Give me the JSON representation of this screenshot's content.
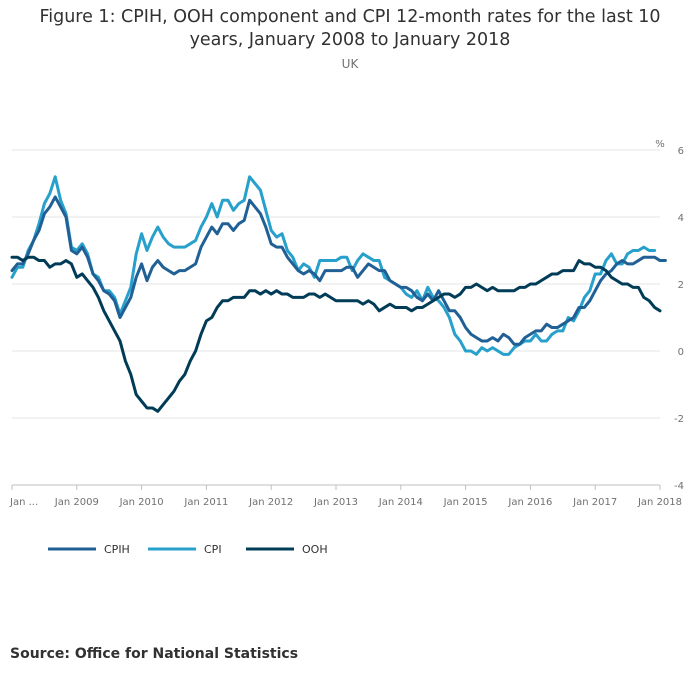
{
  "header": {
    "title_line1": "Figure 1: CPIH, OOH component and CPI 12-month rates for the last 10",
    "title_line2": "years, January 2008 to January 2018",
    "subtitle": "UK"
  },
  "footer": {
    "source": "Source: Office for National Statistics"
  },
  "chart_data": {
    "type": "line",
    "title": "Figure 1: CPIH, OOH component and CPI 12-month rates for the last 10 years, January 2008 to January 2018",
    "subtitle": "UK",
    "ylabel": "%",
    "ylim": [
      -4,
      6
    ],
    "yticks": [
      -4,
      -2,
      0,
      2,
      4,
      6
    ],
    "x_start": "Jan 2008",
    "x_count": 121,
    "x_tick_labels": [
      "Jan ...",
      "Jan 2009",
      "Jan 2010",
      "Jan 2011",
      "Jan 2012",
      "Jan 2013",
      "Jan 2014",
      "Jan 2015",
      "Jan 2016",
      "Jan 2017",
      "Jan 2018"
    ],
    "grid": true,
    "legend_position": "bottom-left",
    "series": [
      {
        "name": "CPIH",
        "color": "#206095",
        "values": [
          2.4,
          2.6,
          2.6,
          2.9,
          3.3,
          3.6,
          4.1,
          4.3,
          4.6,
          4.3,
          4.0,
          3.0,
          2.9,
          3.1,
          2.8,
          2.3,
          2.1,
          1.8,
          1.7,
          1.5,
          1.0,
          1.3,
          1.6,
          2.2,
          2.6,
          2.1,
          2.5,
          2.7,
          2.5,
          2.4,
          2.3,
          2.4,
          2.4,
          2.5,
          2.6,
          3.1,
          3.4,
          3.7,
          3.5,
          3.8,
          3.8,
          3.6,
          3.8,
          3.9,
          4.5,
          4.3,
          4.1,
          3.7,
          3.2,
          3.1,
          3.1,
          2.8,
          2.6,
          2.4,
          2.3,
          2.4,
          2.3,
          2.1,
          2.4,
          2.4,
          2.4,
          2.4,
          2.5,
          2.5,
          2.2,
          2.4,
          2.6,
          2.5,
          2.4,
          2.4,
          2.1,
          2.0,
          1.9,
          1.9,
          1.8,
          1.6,
          1.5,
          1.7,
          1.5,
          1.8,
          1.5,
          1.2,
          1.2,
          1.0,
          0.7,
          0.5,
          0.4,
          0.3,
          0.3,
          0.4,
          0.3,
          0.5,
          0.4,
          0.2,
          0.2,
          0.4,
          0.5,
          0.6,
          0.6,
          0.8,
          0.7,
          0.7,
          0.8,
          0.9,
          1.0,
          1.3,
          1.3,
          1.5,
          1.8,
          2.1,
          2.3,
          2.4,
          2.6,
          2.7,
          2.6,
          2.6,
          2.7,
          2.8,
          2.8,
          2.8,
          2.7,
          2.7
        ]
      },
      {
        "name": "CPI",
        "color": "#27a0cc",
        "values": [
          2.2,
          2.5,
          2.5,
          3.0,
          3.3,
          3.8,
          4.4,
          4.7,
          5.2,
          4.5,
          4.1,
          3.1,
          3.0,
          3.2,
          2.9,
          2.3,
          2.2,
          1.8,
          1.8,
          1.6,
          1.1,
          1.5,
          1.9,
          2.9,
          3.5,
          3.0,
          3.4,
          3.7,
          3.4,
          3.2,
          3.1,
          3.1,
          3.1,
          3.2,
          3.3,
          3.7,
          4.0,
          4.4,
          4.0,
          4.5,
          4.5,
          4.2,
          4.4,
          4.5,
          5.2,
          5.0,
          4.8,
          4.2,
          3.6,
          3.4,
          3.5,
          3.0,
          2.8,
          2.4,
          2.6,
          2.5,
          2.2,
          2.7,
          2.7,
          2.7,
          2.7,
          2.8,
          2.8,
          2.4,
          2.7,
          2.9,
          2.8,
          2.7,
          2.7,
          2.2,
          2.1,
          2.0,
          1.9,
          1.7,
          1.6,
          1.8,
          1.5,
          1.9,
          1.6,
          1.5,
          1.3,
          1.0,
          0.5,
          0.3,
          0.0,
          0.0,
          -0.1,
          0.1,
          0.0,
          0.1,
          0.0,
          -0.1,
          -0.1,
          0.1,
          0.2,
          0.3,
          0.3,
          0.5,
          0.3,
          0.3,
          0.5,
          0.6,
          0.6,
          1.0,
          0.9,
          1.2,
          1.6,
          1.8,
          2.3,
          2.3,
          2.7,
          2.9,
          2.6,
          2.6,
          2.9,
          3.0,
          3.0,
          3.1,
          3.0,
          3.0
        ]
      },
      {
        "name": "OOH",
        "color": "#003c57",
        "values": [
          2.8,
          2.8,
          2.7,
          2.8,
          2.8,
          2.7,
          2.7,
          2.5,
          2.6,
          2.6,
          2.7,
          2.6,
          2.2,
          2.3,
          2.1,
          1.9,
          1.6,
          1.2,
          0.9,
          0.6,
          0.3,
          -0.3,
          -0.7,
          -1.3,
          -1.5,
          -1.7,
          -1.7,
          -1.8,
          -1.6,
          -1.4,
          -1.2,
          -0.9,
          -0.7,
          -0.3,
          0.0,
          0.5,
          0.9,
          1.0,
          1.3,
          1.5,
          1.5,
          1.6,
          1.6,
          1.6,
          1.8,
          1.8,
          1.7,
          1.8,
          1.7,
          1.8,
          1.7,
          1.7,
          1.6,
          1.6,
          1.6,
          1.7,
          1.7,
          1.6,
          1.7,
          1.6,
          1.5,
          1.5,
          1.5,
          1.5,
          1.5,
          1.4,
          1.5,
          1.4,
          1.2,
          1.3,
          1.4,
          1.3,
          1.3,
          1.3,
          1.2,
          1.3,
          1.3,
          1.4,
          1.5,
          1.6,
          1.7,
          1.7,
          1.6,
          1.7,
          1.9,
          1.9,
          2.0,
          1.9,
          1.8,
          1.9,
          1.8,
          1.8,
          1.8,
          1.8,
          1.9,
          1.9,
          2.0,
          2.0,
          2.1,
          2.2,
          2.3,
          2.3,
          2.4,
          2.4,
          2.4,
          2.7,
          2.6,
          2.6,
          2.5,
          2.5,
          2.4,
          2.2,
          2.1,
          2.0,
          2.0,
          1.9,
          1.9,
          1.6,
          1.5,
          1.3,
          1.2
        ]
      }
    ]
  }
}
